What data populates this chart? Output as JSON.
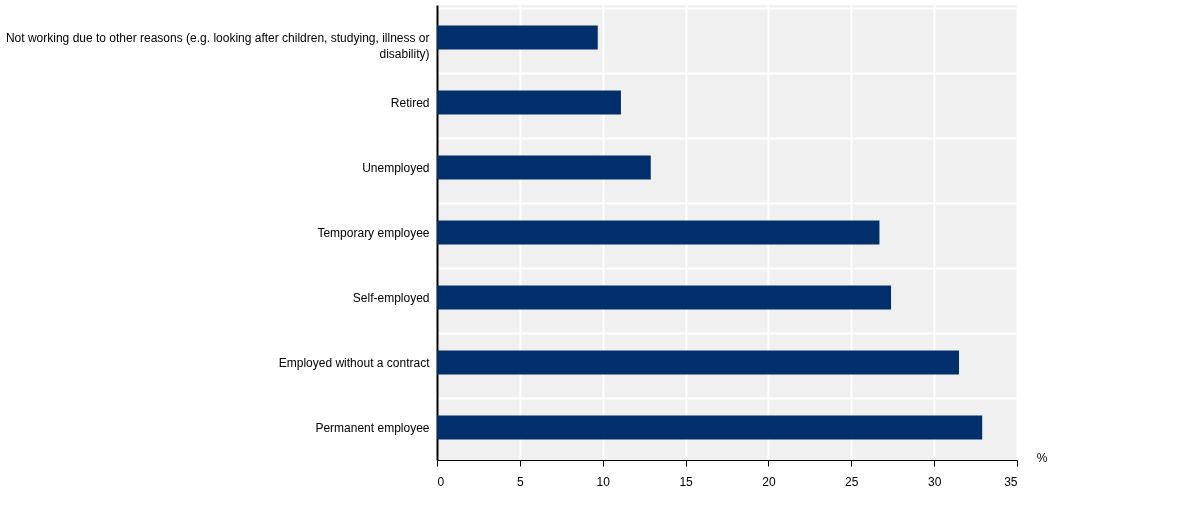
{
  "chart_data": {
    "type": "bar",
    "orientation": "horizontal",
    "xlabel": "%",
    "categories": [
      "Not working due to other reasons (e.g. looking after children, studying, illness or disability)",
      "Retired",
      "Unemployed",
      "Temporary employee",
      "Self-employed",
      "Employed without a contract",
      "Permanent employee"
    ],
    "values": [
      9.7,
      11.1,
      12.9,
      26.7,
      27.4,
      31.5,
      32.9
    ],
    "color": "#002f6c",
    "xlim": [
      0,
      35
    ],
    "xticks": [
      0,
      5,
      10,
      15,
      20,
      25,
      30,
      35
    ],
    "grid": true
  }
}
